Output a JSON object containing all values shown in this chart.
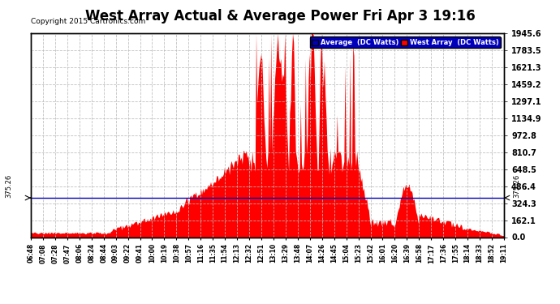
{
  "title": "West Array Actual & Average Power Fri Apr 3 19:16",
  "copyright": "Copyright 2015 Cartronics.com",
  "legend_avg": "Average  (DC Watts)",
  "legend_west": "West Array  (DC Watts)",
  "avg_line_value": 375.26,
  "y_ticks": [
    0.0,
    162.1,
    324.3,
    486.4,
    648.5,
    810.7,
    972.8,
    1134.9,
    1297.1,
    1459.2,
    1621.3,
    1783.5,
    1945.6
  ],
  "y_max": 1945.6,
  "y_min": 0.0,
  "x_tick_labels": [
    "06:48",
    "07:08",
    "07:28",
    "07:47",
    "08:06",
    "08:24",
    "08:44",
    "09:03",
    "09:22",
    "09:41",
    "10:00",
    "10:19",
    "10:38",
    "10:57",
    "11:16",
    "11:35",
    "11:54",
    "12:13",
    "12:32",
    "12:51",
    "13:10",
    "13:29",
    "13:48",
    "14:07",
    "14:26",
    "14:45",
    "15:04",
    "15:23",
    "15:42",
    "16:01",
    "16:20",
    "16:39",
    "16:58",
    "17:17",
    "17:36",
    "17:55",
    "18:14",
    "18:33",
    "18:52",
    "19:11"
  ],
  "fill_color": "#FF0000",
  "avg_line_color": "#0000BB",
  "background_color": "#FFFFFF",
  "title_fontsize": 12,
  "grid_color": "#BBBBBB",
  "border_color": "#000000",
  "legend_bg_color": "#0000BB",
  "legend_text_color": "#FFFFFF"
}
